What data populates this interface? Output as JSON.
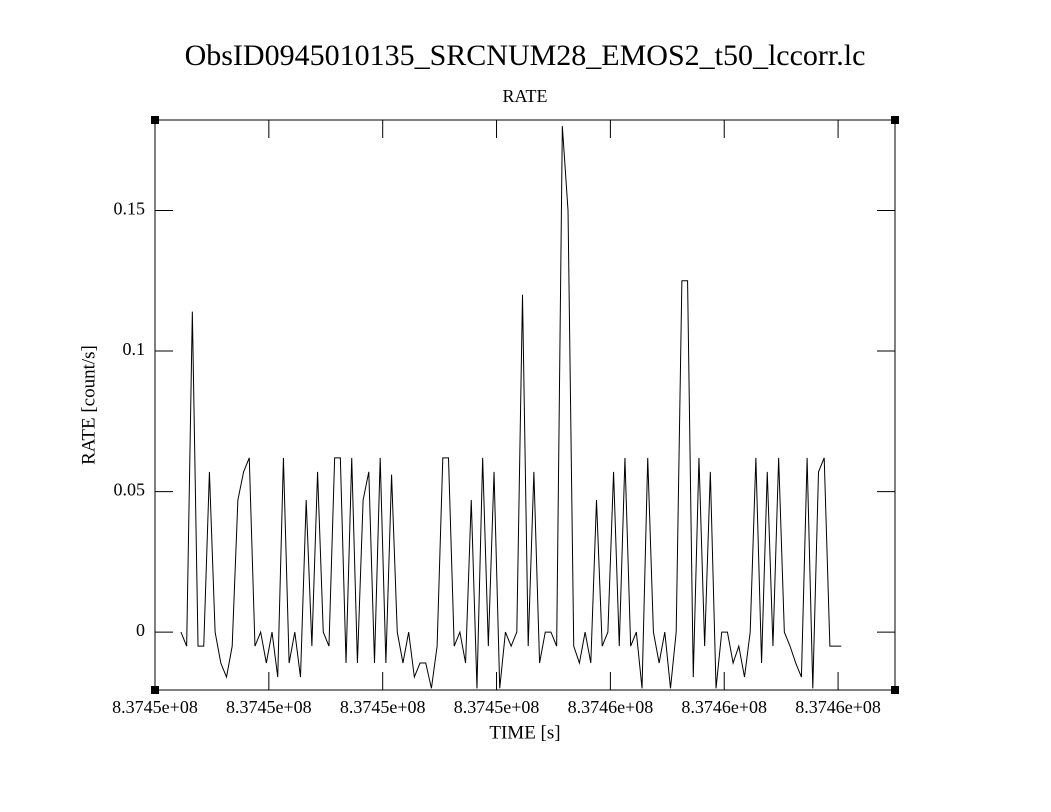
{
  "chart_data": {
    "type": "line",
    "title": "ObsID0945010135_SRCNUM28_EMOS2_t50_lccorr.lc",
    "subtitle": "RATE",
    "x_label": "TIME [s]",
    "y_label": "RATE [count/s]",
    "xlim": [
      837448000,
      837461000
    ],
    "ylim": [
      -0.0206,
      0.1822
    ],
    "xticks": [
      {
        "value": 837448000,
        "label": "8.3745e+08"
      },
      {
        "value": 837450000,
        "label": "8.3745e+08"
      },
      {
        "value": 837452000,
        "label": "8.3745e+08"
      },
      {
        "value": 837454000,
        "label": "8.3745e+08"
      },
      {
        "value": 837456000,
        "label": "8.3746e+08"
      },
      {
        "value": 837458000,
        "label": "8.3746e+08"
      },
      {
        "value": 837460000,
        "label": "8.3746e+08"
      }
    ],
    "yticks": [
      0,
      0.05,
      0.1,
      0.15
    ],
    "x": [
      837448456,
      837448556,
      837448656,
      837448756,
      837448856,
      837448956,
      837449056,
      837449156,
      837449256,
      837449356,
      837449456,
      837449556,
      837449656,
      837449756,
      837449856,
      837449956,
      837450056,
      837450156,
      837450256,
      837450356,
      837450456,
      837450556,
      837450656,
      837450756,
      837450856,
      837450956,
      837451056,
      837451156,
      837451256,
      837451356,
      837451456,
      837451556,
      837451656,
      837451756,
      837451856,
      837451956,
      837452056,
      837452156,
      837452256,
      837452356,
      837452456,
      837452556,
      837452656,
      837452756,
      837452856,
      837452956,
      837453056,
      837453156,
      837453256,
      837453356,
      837453456,
      837453556,
      837453656,
      837453756,
      837453856,
      837453956,
      837454056,
      837454156,
      837454256,
      837454356,
      837454456,
      837454556,
      837454656,
      837454756,
      837454856,
      837454956,
      837455056,
      837455156,
      837455256,
      837455356,
      837455456,
      837455556,
      837455656,
      837455756,
      837455856,
      837455956,
      837456056,
      837456156,
      837456256,
      837456356,
      837456456,
      837456556,
      837456656,
      837456756,
      837456856,
      837456956,
      837457056,
      837457156,
      837457256,
      837457356,
      837457456,
      837457556,
      837457656,
      837457756,
      837457856,
      837457956,
      837458056,
      837458156,
      837458256,
      837458356,
      837458456,
      837458556,
      837458656,
      837458756,
      837458856,
      837458956,
      837459056,
      837459156,
      837459256,
      837459356,
      837459456,
      837459556,
      837459656,
      837459756,
      837459856,
      837459956,
      837460056
    ],
    "series": [
      {
        "name": "RATE",
        "color": "#000000",
        "values": [
          0,
          -0.005,
          0.114,
          -0.005,
          -0.005,
          0.057,
          0,
          -0.011,
          -0.016,
          -0.005,
          0.047,
          0.057,
          0.062,
          -0.005,
          0,
          -0.011,
          0,
          -0.016,
          0.062,
          -0.011,
          0,
          -0.016,
          0.047,
          -0.005,
          0.057,
          0,
          -0.005,
          0.062,
          0.062,
          -0.011,
          0.062,
          -0.011,
          0.047,
          0.057,
          -0.011,
          0.062,
          -0.011,
          0.056,
          0,
          -0.011,
          0,
          -0.016,
          -0.011,
          -0.011,
          -0.02,
          -0.005,
          0.062,
          0.062,
          -0.005,
          0,
          -0.011,
          0.047,
          -0.02,
          0.062,
          -0.005,
          0.057,
          -0.02,
          0,
          -0.005,
          0,
          0.12,
          -0.005,
          0.057,
          -0.011,
          0,
          0,
          -0.005,
          0.18,
          0.15,
          -0.005,
          -0.011,
          0,
          -0.011,
          0.047,
          -0.005,
          0,
          0.057,
          -0.005,
          0.062,
          -0.005,
          0,
          -0.02,
          0.062,
          0,
          -0.011,
          0,
          -0.02,
          0,
          0.125,
          0.125,
          -0.016,
          0.062,
          -0.005,
          0.057,
          -0.02,
          0,
          0,
          -0.011,
          -0.005,
          -0.016,
          0,
          0.062,
          -0.011,
          0.057,
          -0.005,
          0.062,
          0,
          -0.005,
          -0.011,
          -0.016,
          0.062,
          -0.02,
          0.057,
          0.062,
          -0.005,
          -0.005,
          -0.005
        ]
      }
    ]
  }
}
